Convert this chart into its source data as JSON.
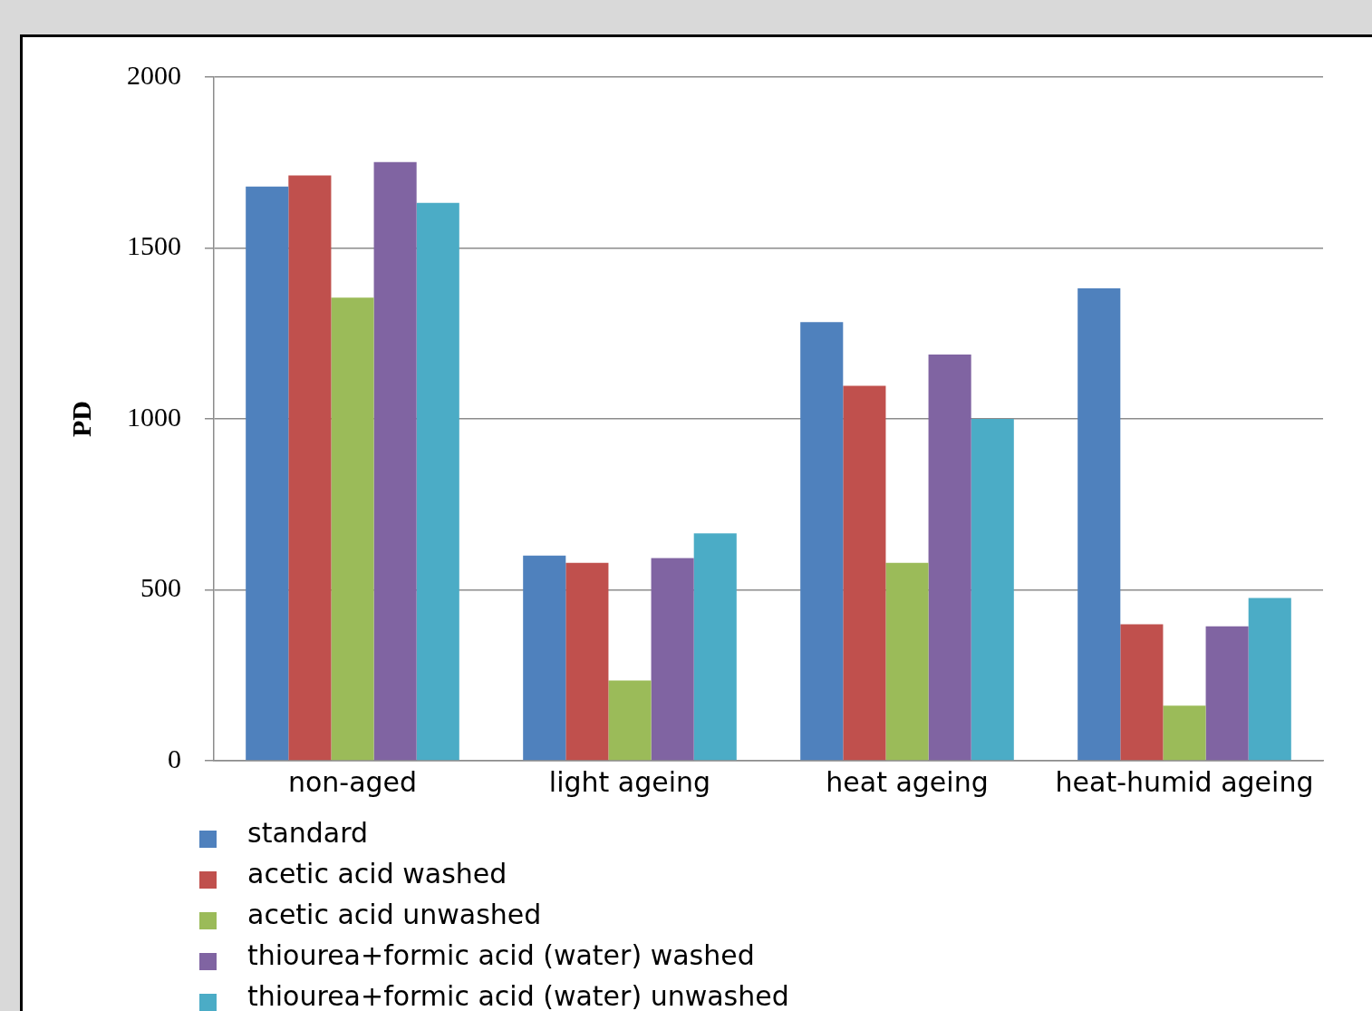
{
  "chart_data": {
    "type": "bar",
    "ylabel": "PD",
    "categories": [
      "non-aged",
      "light ageing",
      "heat ageing",
      "heat-humid ageing"
    ],
    "series": [
      {
        "name": "standard",
        "color": "#4f81bd",
        "values": [
          1680,
          600,
          1283,
          1382
        ]
      },
      {
        "name": "acetic acid washed",
        "color": "#c0504d",
        "values": [
          1712,
          579,
          1097,
          399
        ]
      },
      {
        "name": "acetic acid unwashed",
        "color": "#9bbb59",
        "values": [
          1355,
          235,
          579,
          161
        ]
      },
      {
        "name": "thiourea+formic acid (water) washed",
        "color": "#8064a2",
        "values": [
          1751,
          593,
          1188,
          393
        ]
      },
      {
        "name": "thiourea+formic acid (water) unwashed",
        "color": "#4bacc6",
        "values": [
          1632,
          665,
          1000,
          476
        ]
      }
    ],
    "ylim": [
      0,
      2000
    ],
    "yticks": [
      0,
      500,
      1000,
      1500,
      2000
    ],
    "grid": "y",
    "legend": "bottom left"
  }
}
